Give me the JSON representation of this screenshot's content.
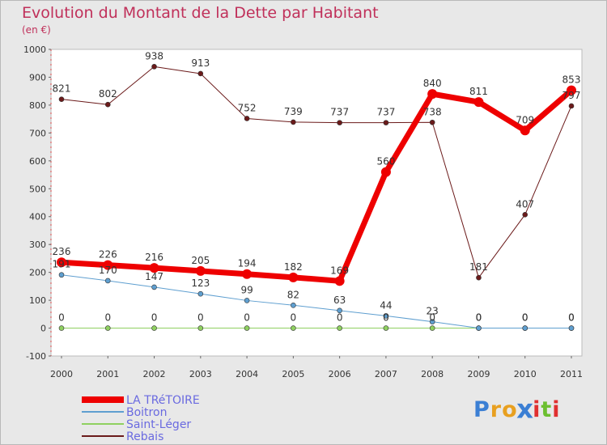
{
  "title": "Evolution du Montant de la Dette par Habitant",
  "subtitle": "(en €)",
  "logo": {
    "letters": [
      "P",
      "r",
      "o",
      "x",
      "i",
      "t",
      "i"
    ],
    "colors": [
      "#3b7fd4",
      "#e8a020",
      "#e8a020",
      "#3b7fd4",
      "#e03030",
      "#6cbf30",
      "#e03030"
    ]
  },
  "chart_data": {
    "type": "line",
    "x": [
      "2000",
      "2001",
      "2002",
      "2003",
      "2004",
      "2005",
      "2006",
      "2007",
      "2008",
      "2009",
      "2010",
      "2011"
    ],
    "ylim": [
      -100,
      1000
    ],
    "yticks": [
      -100,
      0,
      100,
      200,
      300,
      400,
      500,
      600,
      700,
      800,
      900,
      1000
    ],
    "grid": false,
    "legend_position": "bottom-left",
    "series": [
      {
        "name": "Rebais",
        "color": "#6b1a1a",
        "width": 1,
        "values": [
          821,
          802,
          938,
          913,
          752,
          739,
          737,
          737,
          738,
          181,
          407,
          797
        ],
        "labels": [
          "821",
          "802",
          "938",
          "913",
          "752",
          "739",
          "737",
          "737",
          "738",
          "181",
          "407",
          "797"
        ]
      },
      {
        "name": "Saint-Léger",
        "color": "#8fd060",
        "width": 1,
        "values": [
          0,
          0,
          0,
          0,
          0,
          0,
          0,
          0,
          0,
          0,
          0,
          0
        ],
        "labels": [
          "0",
          "0",
          "0",
          "0",
          "0",
          "0",
          "0",
          "0",
          "0",
          "0",
          "0",
          "0"
        ]
      },
      {
        "name": "Boitron",
        "color": "#5f9fd0",
        "width": 1,
        "values": [
          191,
          170,
          147,
          123,
          99,
          82,
          63,
          44,
          23,
          0,
          0,
          0
        ],
        "labels": [
          "191",
          "170",
          "147",
          "123",
          "99",
          "82",
          "63",
          "44",
          "23",
          "0",
          "0",
          "0"
        ]
      },
      {
        "name": "LA TRéTOIRE",
        "color": "#ee0000",
        "width": 7,
        "values": [
          236,
          226,
          216,
          205,
          194,
          182,
          169,
          560,
          840,
          811,
          709,
          853
        ],
        "labels": [
          "236",
          "226",
          "216",
          "205",
          "194",
          "182",
          "169",
          "560",
          "840",
          "811",
          "709",
          "853"
        ]
      }
    ],
    "legend_order": [
      "LA TRéTOIRE",
      "Boitron",
      "Saint-Léger",
      "Rebais"
    ]
  }
}
